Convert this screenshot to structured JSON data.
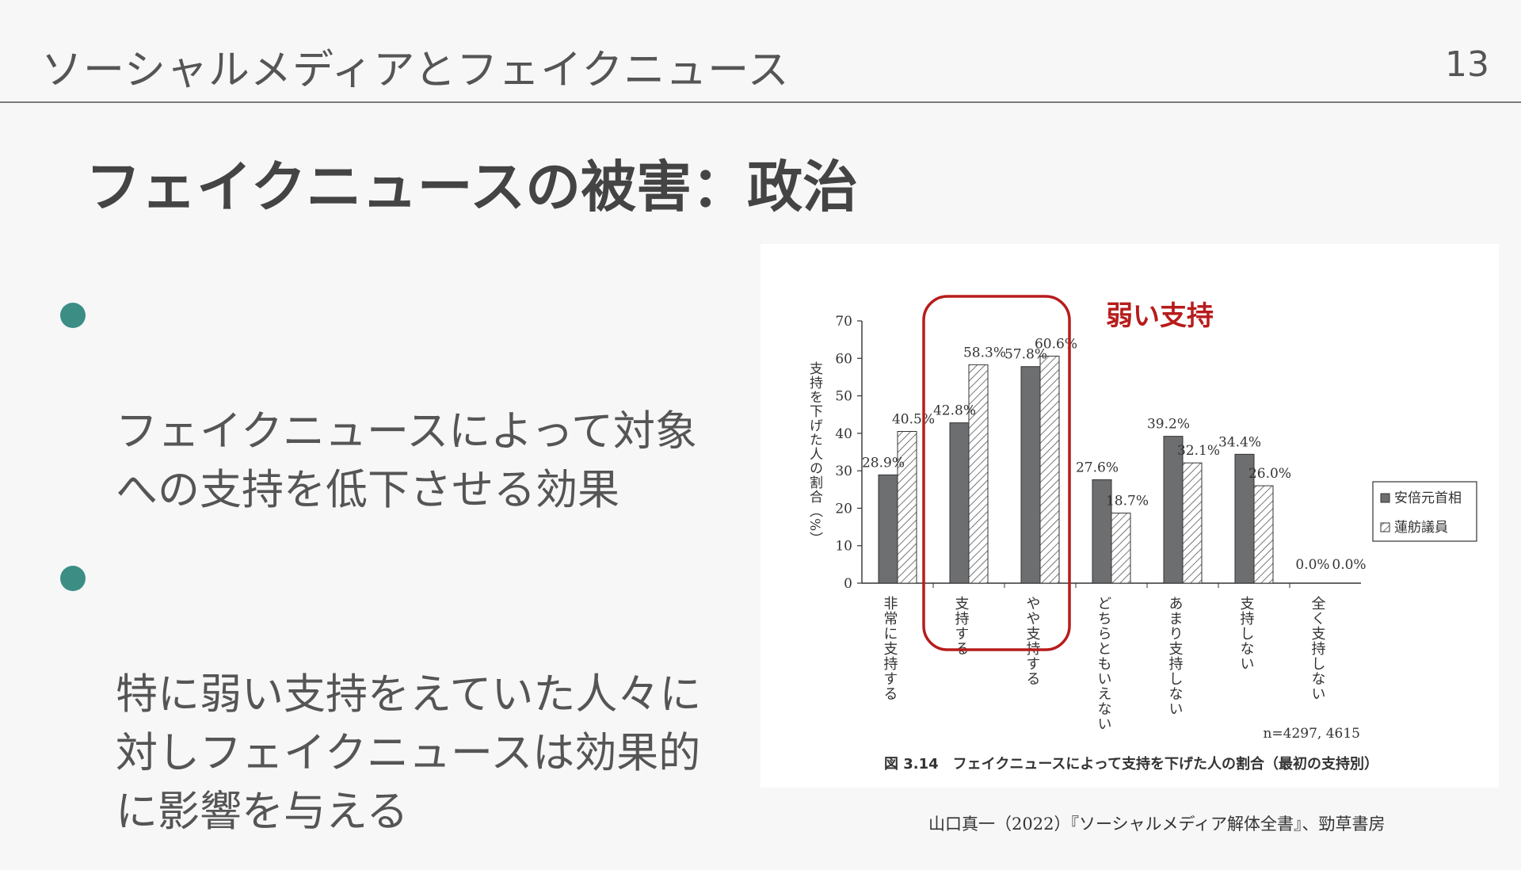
{
  "header": {
    "title": "ソーシャルメディアとフェイクニュース",
    "page_number": "13"
  },
  "slide": {
    "title": "フェイクニュースの被害：政治"
  },
  "bullets": [
    {
      "text": "フェイクニュースによって対象\nへの支持を低下させる効果"
    },
    {
      "text": "特に弱い支持をえていた人々に\n対しフェイクニュースは効果的\nに影響を与える"
    }
  ],
  "colors": {
    "accent": "#3c8e85",
    "highlight_red": "#b71c1c",
    "bar_dark": "#6d6e70"
  },
  "figure": {
    "annotation": "弱い支持",
    "caption": "図 3.14　フェイクニュースによって支持を下げた人の割合（最初の支持別）",
    "n_note": "n=4297, 4615"
  },
  "chart_data": {
    "type": "bar",
    "ylabel": "支持を下げた人の割合（%）",
    "ylim": [
      0,
      70
    ],
    "yticks": [
      "0",
      "10",
      "20",
      "30",
      "40",
      "50",
      "60",
      "70"
    ],
    "categories": [
      "非常に支持する",
      "支持する",
      "やや支持する",
      "どちらともいえない",
      "あまり支持しない",
      "支持しない",
      "全く支持しない"
    ],
    "series": [
      {
        "name": "安倍元首相",
        "values": [
          28.9,
          42.8,
          57.8,
          27.6,
          39.2,
          34.4,
          0.0
        ],
        "labels": [
          "28.9%",
          "42.8%",
          "57.8%",
          "27.6%",
          "39.2%",
          "34.4%",
          "0.0%"
        ]
      },
      {
        "name": "蓮舫議員",
        "values": [
          40.5,
          58.3,
          60.6,
          18.7,
          32.1,
          26.0,
          0.0
        ],
        "labels": [
          "40.5%",
          "58.3%",
          "60.6%",
          "18.7%",
          "32.1%",
          "26.0%",
          "0.0%"
        ]
      }
    ],
    "legend": "right",
    "grid": false,
    "highlight": {
      "categories": [
        "支持する",
        "やや支持する"
      ],
      "label": "弱い支持"
    }
  },
  "citation": "山口真一（2022）『ソーシャルメディア解体全書』、勁草書房"
}
